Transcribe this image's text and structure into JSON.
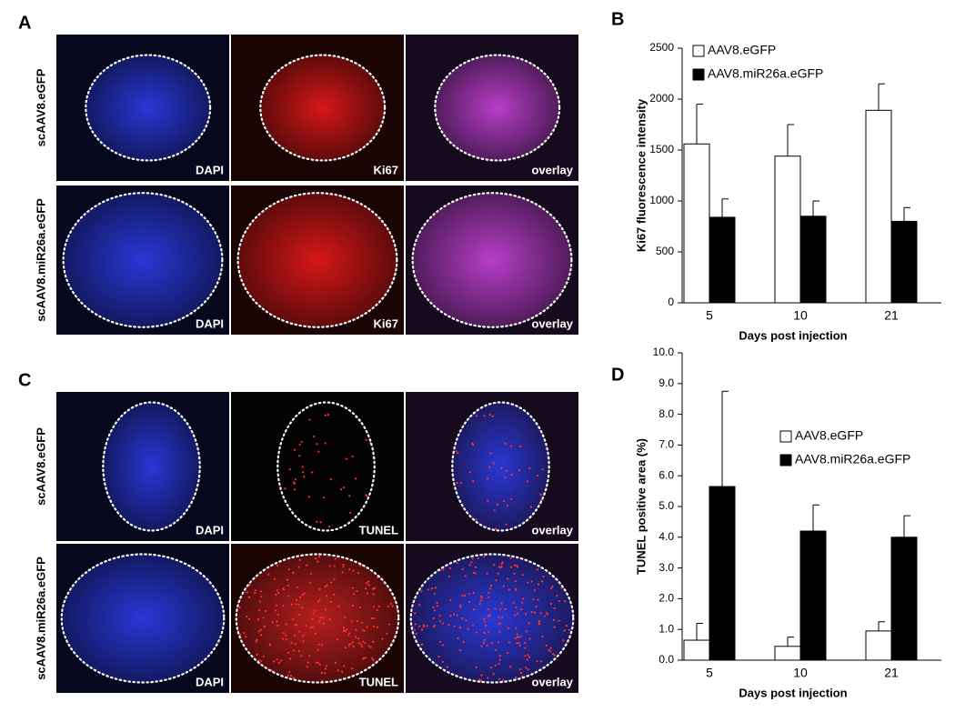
{
  "micrographs": [
    {
      "panel": "A",
      "rows": [
        {
          "label": "scAAV8.eGFP",
          "captions": [
            "DAPI",
            "Ki67",
            "overlay"
          ]
        },
        {
          "label": "scAAV8.miR26a.eGFP",
          "captions": [
            "DAPI",
            "Ki67",
            "overlay"
          ]
        }
      ]
    },
    {
      "panel": "C",
      "rows": [
        {
          "label": "scAAV8.eGFP",
          "captions": [
            "DAPI",
            "TUNEL",
            "overlay"
          ]
        },
        {
          "label": "scAAV8.miR26a.eGFP",
          "captions": [
            "DAPI",
            "TUNEL",
            "overlay"
          ]
        }
      ]
    }
  ],
  "chart_data": [
    {
      "type": "bar",
      "panel": "B",
      "y_label": "Ki67 fluorescence intensity",
      "x_label": "Days post injection",
      "categories": [
        "5",
        "10",
        "21"
      ],
      "series": [
        {
          "name": "AAV8.eGFP",
          "color": "#ffffff",
          "values": [
            1560,
            1440,
            1890
          ],
          "errors": [
            390,
            310,
            260
          ]
        },
        {
          "name": "AAV8.miR26a.eGFP",
          "color": "#000000",
          "values": [
            840,
            850,
            800
          ],
          "errors": [
            180,
            150,
            135
          ]
        }
      ],
      "ylim": [
        0,
        2500
      ],
      "yticks": [
        0,
        500,
        1000,
        1500,
        2000,
        2500
      ],
      "legend": "upper left"
    },
    {
      "type": "bar",
      "panel": "D",
      "y_label": "TUNEL positive area (%)",
      "x_label": "Days post injection",
      "categories": [
        "5",
        "10",
        "21"
      ],
      "series": [
        {
          "name": "AAV8.eGFP",
          "color": "#ffffff",
          "values": [
            0.65,
            0.45,
            0.95
          ],
          "errors": [
            0.55,
            0.3,
            0.3
          ]
        },
        {
          "name": "AAV8.miR26a.eGFP",
          "color": "#000000",
          "values": [
            5.65,
            4.2,
            4.0
          ],
          "errors": [
            3.1,
            0.85,
            0.7
          ]
        }
      ],
      "ylim": [
        0,
        10
      ],
      "yticks": [
        {
          "value": 0,
          "label": "0.0"
        },
        {
          "value": 1,
          "label": "1.0"
        },
        {
          "value": 2,
          "label": "2.0"
        },
        {
          "value": 3,
          "label": "3.0"
        },
        {
          "value": 4,
          "label": "4.0"
        },
        {
          "value": 5,
          "label": "5.0"
        },
        {
          "value": 6,
          "label": "6.0"
        },
        {
          "value": 7,
          "label": "7.0"
        },
        {
          "value": 8,
          "label": "8.0"
        },
        {
          "value": 9,
          "label": "9.0"
        },
        {
          "value": 10,
          "label": "10.0"
        }
      ],
      "legend": "upper right"
    }
  ]
}
